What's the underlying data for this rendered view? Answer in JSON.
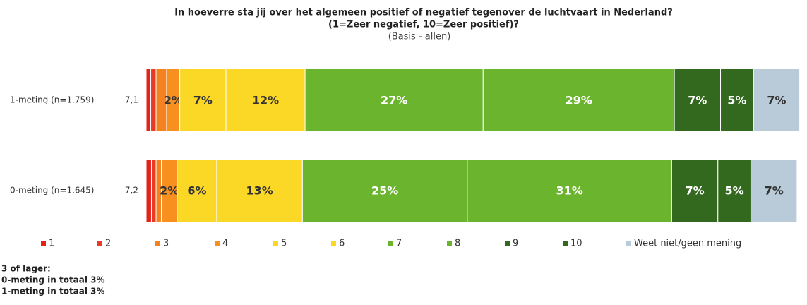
{
  "chart_data": {
    "type": "stacked_barh",
    "title": [
      "In hoeverre sta jij over het algemeen positief of negatief tegenover de luchtvaart in Nederland?",
      "(1=Zeer negatief, 10=Zeer positief)?"
    ],
    "subtitle": "(Basis - allen)",
    "categories": [
      "1-meting (n=1.759)",
      "0-meting (n=1.645)"
    ],
    "averages": [
      "7,1",
      "7,2"
    ],
    "xlim": [
      0,
      100
    ],
    "series": [
      {
        "name": "1",
        "color": "#e2231a",
        "values": [
          0.7,
          0.8
        ],
        "value_labels": [
          null,
          null
        ]
      },
      {
        "name": "2",
        "color": "#e83a24",
        "values": [
          0.8,
          0.7
        ],
        "value_labels": [
          null,
          null
        ]
      },
      {
        "name": "3",
        "color": "#f5821f",
        "values": [
          1.6,
          0.8
        ],
        "value_labels": [
          null,
          null
        ]
      },
      {
        "name": "4",
        "color": "#f7901e",
        "values": [
          2,
          2.4
        ],
        "value_labels": [
          "2%",
          "2%"
        ]
      },
      {
        "name": "5",
        "color": "#fcd826",
        "values": [
          7,
          6
        ],
        "value_labels": [
          "7%",
          "6%"
        ]
      },
      {
        "name": "6",
        "color": "#fcd826",
        "values": [
          12,
          13
        ],
        "value_labels": [
          "12%",
          "13%"
        ]
      },
      {
        "name": "7",
        "color": "#6bb52e",
        "values": [
          27,
          25
        ],
        "value_labels": [
          "27%",
          "25%"
        ]
      },
      {
        "name": "8",
        "color": "#6bb52e",
        "values": [
          29,
          31
        ],
        "value_labels": [
          "29%",
          "31%"
        ]
      },
      {
        "name": "9",
        "color": "#33691f",
        "values": [
          7,
          7
        ],
        "value_labels": [
          "7%",
          "7%"
        ]
      },
      {
        "name": "10",
        "color": "#33691f",
        "values": [
          5,
          5
        ],
        "value_labels": [
          "5%",
          "5%"
        ]
      },
      {
        "name": "Weet niet/geen mening",
        "color": "#b9cbd8",
        "values": [
          7,
          7
        ],
        "value_labels": [
          "7%",
          "7%"
        ]
      }
    ],
    "notes": [
      "3 of lager:",
      "0-meting in totaal 3%",
      "1-meting in totaal  3%"
    ]
  }
}
